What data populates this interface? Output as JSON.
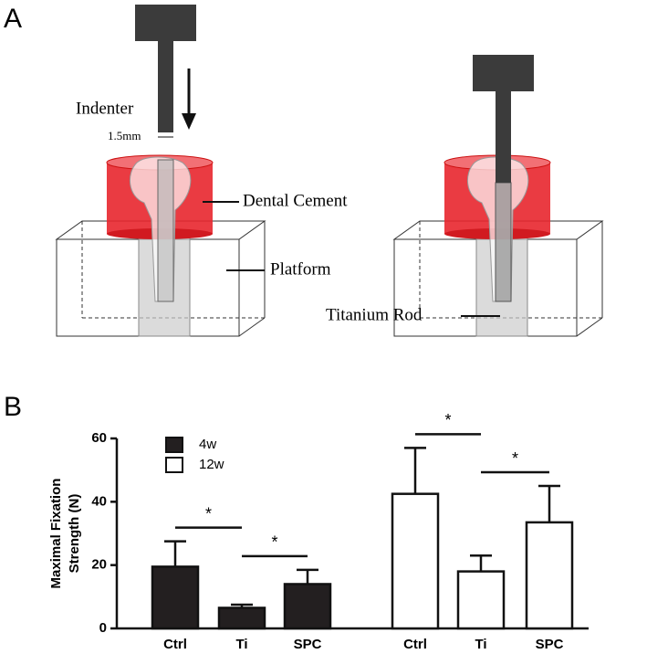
{
  "figure": {
    "panel_a": {
      "label": "A",
      "indenter": "Indenter",
      "width": "1.5mm",
      "dental_cement": "Dental Cement",
      "platform": "Platform",
      "titanium_rod": "Titanium Rod"
    },
    "panel_b": {
      "label": "B"
    }
  },
  "chart_data": {
    "type": "bar",
    "y_label": [
      "Maximal Fixation",
      "Strength (N)"
    ],
    "categories": [
      "Ctrl",
      "Ti",
      "SPC",
      "Ctrl",
      "Ti",
      "SPC"
    ],
    "series": [
      {
        "name": "4w",
        "color": "#231f20",
        "values": [
          19.5,
          6.5,
          14,
          null,
          null,
          null
        ],
        "errors": [
          8,
          1,
          4.5,
          null,
          null,
          null
        ]
      },
      {
        "name": "12w",
        "color": "#ffffff",
        "values": [
          null,
          null,
          null,
          42.5,
          18,
          33.5
        ],
        "errors": [
          null,
          null,
          null,
          14.5,
          5,
          11.5
        ]
      }
    ],
    "ylim": [
      0,
      60
    ],
    "yticks": [
      0,
      20,
      40,
      60
    ],
    "significance": [
      {
        "from": 0,
        "to": 1,
        "label": "*"
      },
      {
        "from": 1,
        "to": 2,
        "label": "*"
      },
      {
        "from": 3,
        "to": 4,
        "label": "*"
      },
      {
        "from": 4,
        "to": 5,
        "label": "*"
      }
    ]
  }
}
